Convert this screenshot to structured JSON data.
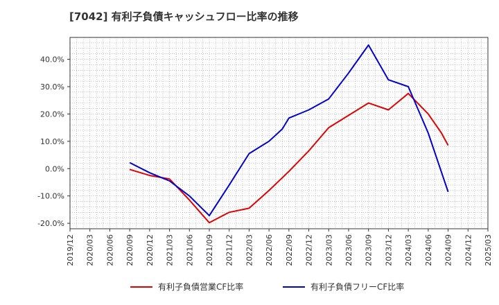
{
  "chart_data": {
    "type": "line",
    "title": "[7042]  有利子負債キャッシュフロー比率の推移",
    "x_ticks": [
      "2019/12",
      "2020/03",
      "2020/06",
      "2020/09",
      "2020/12",
      "2021/03",
      "2021/06",
      "2021/09",
      "2021/12",
      "2022/03",
      "2022/06",
      "2022/09",
      "2022/12",
      "2023/03",
      "2023/06",
      "2023/09",
      "2023/12",
      "2024/03",
      "2024/06",
      "2024/09",
      "2024/12",
      "2025/03"
    ],
    "y_ticks": [
      "-20.0%",
      "-10.0%",
      "0.0%",
      "10.0%",
      "20.0%",
      "30.0%",
      "40.0%"
    ],
    "ylim": [
      -22,
      48
    ],
    "grid": true,
    "legend_position": "bottom",
    "series": [
      {
        "name": "有利子負債営業CF比率",
        "color": "#dd0000",
        "x": [
          "2020/09",
          "2020/12",
          "2021/03",
          "2021/06",
          "2021/09",
          "2021/12",
          "2022/03",
          "2022/06",
          "2022/09",
          "2022/12",
          "2023/03",
          "2023/06",
          "2023/09",
          "2023/12",
          "2024/01",
          "2024/03",
          "2024/06",
          "2024/08",
          "2024/09"
        ],
        "values": [
          -0.3,
          -2.5,
          -3.8,
          -11.5,
          -19.8,
          -16.0,
          -14.5,
          -8.0,
          -1.0,
          6.5,
          15.0,
          19.5,
          24.0,
          21.5,
          23.5,
          27.5,
          20.0,
          13.0,
          8.5
        ]
      },
      {
        "name": "有利子負債フリーCF比率",
        "color": "#0000cc",
        "x": [
          "2020/09",
          "2020/12",
          "2021/03",
          "2021/06",
          "2021/09",
          "2021/12",
          "2022/03",
          "2022/06",
          "2022/08",
          "2022/09",
          "2022/12",
          "2023/03",
          "2023/06",
          "2023/09",
          "2023/12",
          "2024/03",
          "2024/06",
          "2024/09"
        ],
        "values": [
          2.2,
          -1.5,
          -4.5,
          -10.0,
          -17.2,
          -6.0,
          5.5,
          10.0,
          14.5,
          18.5,
          21.5,
          25.5,
          35.0,
          45.2,
          32.5,
          30.0,
          13.0,
          -8.5
        ]
      }
    ]
  }
}
